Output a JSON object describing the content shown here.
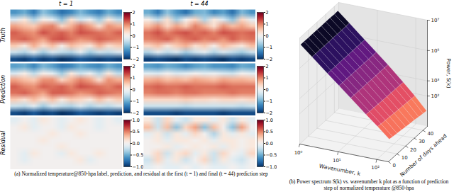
{
  "chart_data": [
    {
      "type": "heatmap_grid",
      "caption": "(a) Normalized temperature@850-hpa label, prediction, and residual at the first (t = 1) and final (t = 44) prediction step",
      "columns": [
        "t = 1",
        "t = 44"
      ],
      "color": "RdBu_r",
      "tick_labels": false,
      "rows": [
        {
          "label": "Truth",
          "colorbar": {
            "range": [
              -2,
              2
            ],
            "ticks": [
              {
                "value": -2,
                "label": "−2"
              },
              {
                "value": -1,
                "label": "−1"
              },
              0,
              1,
              2
            ]
          },
          "cells": [
            [
              [
                -1.2,
                -1.0,
                -1.4,
                -0.8,
                -1.1,
                -1.5,
                -1.3,
                -0.9,
                -1.2,
                -1.4,
                -1.0,
                -1.3
              ],
              [
                -0.3,
                0.2,
                -0.6,
                0.1,
                -0.2,
                -0.8,
                0.3,
                -0.4,
                -0.1,
                -0.7,
                0.2,
                -0.5
              ],
              [
                0.8,
                0.6,
                0.5,
                0.9,
                1.0,
                0.4,
                0.7,
                1.1,
                0.8,
                0.3,
                0.9,
                0.7
              ],
              [
                1.2,
                1.0,
                0.9,
                1.3,
                1.1,
                1.2,
                1.0,
                1.3,
                1.2,
                1.1,
                1.0,
                1.2
              ],
              [
                1.1,
                1.2,
                1.0,
                0.8,
                1.2,
                1.3,
                1.1,
                0.9,
                1.0,
                1.2,
                1.1,
                1.0
              ],
              [
                0.5,
                0.2,
                0.7,
                0.3,
                0.6,
                0.1,
                0.6,
                0.4,
                0.2,
                0.7,
                0.3,
                0.5
              ],
              [
                -0.4,
                -0.6,
                -0.2,
                -0.7,
                -0.3,
                -0.5,
                -0.6,
                -0.2,
                -0.7,
                -0.4,
                -0.5,
                -0.3
              ],
              [
                -1.8,
                -1.9,
                -1.7,
                -1.9,
                -1.8,
                -2.0,
                -1.9,
                -1.7,
                -1.8,
                -1.9,
                -1.8,
                -1.9
              ]
            ],
            [
              [
                -1.0,
                -1.4,
                -0.8,
                -1.2,
                -1.5,
                -1.0,
                -0.9,
                -1.3,
                -1.1,
                -1.5,
                -0.9,
                -1.2
              ],
              [
                0.1,
                -0.5,
                0.3,
                -0.7,
                0.0,
                0.4,
                -0.6,
                0.2,
                -0.3,
                -0.8,
                0.4,
                -0.2
              ],
              [
                0.6,
                0.9,
                0.4,
                0.8,
                0.5,
                1.0,
                0.7,
                0.3,
                0.9,
                0.6,
                0.8,
                0.5
              ],
              [
                1.1,
                1.3,
                1.0,
                1.2,
                1.3,
                1.1,
                1.2,
                1.0,
                1.3,
                1.2,
                1.1,
                1.2
              ],
              [
                1.0,
                1.1,
                1.2,
                0.9,
                1.1,
                1.2,
                1.0,
                1.1,
                0.9,
                1.2,
                1.0,
                1.1
              ],
              [
                0.4,
                0.6,
                0.2,
                0.5,
                0.7,
                0.3,
                0.5,
                0.1,
                0.6,
                0.4,
                0.2,
                0.6
              ],
              [
                -0.6,
                -0.2,
                -0.5,
                -0.3,
                -0.7,
                -0.4,
                -0.2,
                -0.6,
                -0.3,
                -0.5,
                -0.7,
                -0.4
              ],
              [
                -1.9,
                -1.8,
                -1.9,
                -2.0,
                -1.8,
                -1.9,
                -1.8,
                -1.9,
                -2.0,
                -1.8,
                -1.9,
                -1.8
              ]
            ]
          ]
        },
        {
          "label": "Prediction",
          "colorbar": {
            "range": [
              -2,
              2
            ],
            "ticks": [
              {
                "value": -2,
                "label": "−2"
              },
              {
                "value": -1,
                "label": "−1"
              },
              0,
              1,
              2
            ]
          },
          "cells": [
            [
              [
                -1.1,
                -1.0,
                -1.3,
                -0.9,
                -1.1,
                -1.4,
                -1.3,
                -1.0,
                -1.2,
                -1.3,
                -1.0,
                -1.2
              ],
              [
                -0.3,
                0.1,
                -0.5,
                0.1,
                -0.2,
                -0.7,
                0.2,
                -0.4,
                -0.1,
                -0.6,
                0.2,
                -0.5
              ],
              [
                0.8,
                0.6,
                0.5,
                0.9,
                0.9,
                0.4,
                0.7,
                1.0,
                0.8,
                0.3,
                0.9,
                0.7
              ],
              [
                1.2,
                1.0,
                0.9,
                1.2,
                1.1,
                1.2,
                1.0,
                1.3,
                1.2,
                1.1,
                1.0,
                1.2
              ],
              [
                1.1,
                1.2,
                1.0,
                0.8,
                1.2,
                1.2,
                1.1,
                0.9,
                1.0,
                1.2,
                1.1,
                1.0
              ],
              [
                0.5,
                0.3,
                0.6,
                0.3,
                0.6,
                0.2,
                0.5,
                0.4,
                0.2,
                0.6,
                0.3,
                0.5
              ],
              [
                -0.4,
                -0.5,
                -0.2,
                -0.7,
                -0.3,
                -0.5,
                -0.6,
                -0.3,
                -0.6,
                -0.4,
                -0.5,
                -0.3
              ],
              [
                -1.8,
                -1.9,
                -1.7,
                -1.9,
                -1.8,
                -2.0,
                -1.9,
                -1.7,
                -1.8,
                -1.9,
                -1.8,
                -1.9
              ]
            ],
            [
              [
                -1.1,
                -1.2,
                -1.0,
                -1.1,
                -1.3,
                -1.1,
                -1.0,
                -1.2,
                -1.2,
                -1.3,
                -1.0,
                -1.1
              ],
              [
                -0.2,
                -0.3,
                0.0,
                -0.3,
                -0.2,
                0.0,
                -0.2,
                -0.1,
                -0.3,
                -0.4,
                0.0,
                -0.2
              ],
              [
                0.7,
                0.8,
                0.6,
                0.7,
                0.6,
                0.8,
                0.7,
                0.6,
                0.8,
                0.7,
                0.7,
                0.6
              ],
              [
                1.1,
                1.2,
                1.1,
                1.1,
                1.2,
                1.1,
                1.1,
                1.1,
                1.2,
                1.1,
                1.1,
                1.1
              ],
              [
                1.0,
                1.1,
                1.1,
                1.0,
                1.1,
                1.1,
                1.0,
                1.0,
                1.0,
                1.1,
                1.0,
                1.0
              ],
              [
                0.4,
                0.4,
                0.4,
                0.4,
                0.5,
                0.4,
                0.4,
                0.3,
                0.4,
                0.4,
                0.3,
                0.4
              ],
              [
                -0.4,
                -0.4,
                -0.4,
                -0.4,
                -0.5,
                -0.4,
                -0.4,
                -0.4,
                -0.4,
                -0.4,
                -0.5,
                -0.4
              ],
              [
                -1.8,
                -1.8,
                -1.8,
                -1.9,
                -1.8,
                -1.8,
                -1.8,
                -1.8,
                -1.9,
                -1.8,
                -1.8,
                -1.8
              ]
            ]
          ]
        },
        {
          "label": "Residual",
          "colorbar": {
            "range": [
              -1,
              1
            ],
            "ticks": [
              {
                "value": -1,
                "label": "−1.0"
              },
              {
                "value": -0.5,
                "label": "−0.5"
              },
              {
                "value": 0,
                "label": "0.0"
              },
              0.5,
              {
                "value": 1,
                "label": "1.0"
              }
            ]
          },
          "cells": [
            [
              [
                -0.1,
                0.0,
                -0.1,
                0.1,
                0.0,
                -0.1,
                0.0,
                0.1,
                0.0,
                -0.1,
                0.0,
                -0.1
              ],
              [
                0.0,
                0.1,
                -0.1,
                0.0,
                0.0,
                -0.1,
                0.1,
                0.0,
                0.0,
                -0.1,
                0.0,
                0.0
              ],
              [
                0.0,
                0.0,
                0.0,
                0.0,
                0.1,
                0.0,
                0.0,
                0.1,
                0.0,
                0.0,
                0.0,
                0.0
              ],
              [
                0.0,
                0.0,
                0.0,
                0.1,
                0.0,
                0.0,
                0.0,
                0.0,
                0.0,
                0.0,
                0.0,
                0.0
              ],
              [
                0.0,
                0.0,
                0.0,
                0.0,
                0.0,
                0.1,
                0.0,
                0.0,
                0.0,
                0.0,
                0.0,
                0.0
              ],
              [
                0.0,
                -0.1,
                0.1,
                0.0,
                0.0,
                -0.1,
                0.1,
                0.0,
                0.0,
                0.1,
                0.0,
                0.0
              ],
              [
                0.0,
                -0.1,
                0.0,
                0.0,
                0.0,
                0.0,
                0.0,
                0.1,
                -0.1,
                0.0,
                0.0,
                0.0
              ],
              [
                0.0,
                0.0,
                0.0,
                0.0,
                0.0,
                0.0,
                0.0,
                0.0,
                0.0,
                0.0,
                0.0,
                0.0
              ]
            ],
            [
              [
                0.1,
                -0.2,
                0.2,
                -0.1,
                -0.2,
                0.1,
                0.1,
                -0.1,
                0.1,
                -0.2,
                0.1,
                -0.1
              ],
              [
                0.3,
                -0.2,
                0.3,
                -0.4,
                0.2,
                0.4,
                -0.4,
                0.3,
                0.0,
                -0.4,
                0.4,
                0.0
              ],
              [
                -0.1,
                0.1,
                -0.2,
                0.1,
                -0.1,
                0.2,
                0.0,
                -0.3,
                0.1,
                -0.1,
                0.1,
                -0.1
              ],
              [
                0.0,
                0.1,
                -0.1,
                0.1,
                0.1,
                0.0,
                0.1,
                -0.1,
                0.1,
                0.1,
                0.0,
                0.1
              ],
              [
                0.0,
                0.0,
                0.1,
                -0.1,
                0.0,
                0.1,
                0.0,
                0.1,
                -0.1,
                0.1,
                0.0,
                0.1
              ],
              [
                0.0,
                0.2,
                -0.2,
                0.1,
                0.2,
                -0.1,
                0.1,
                -0.2,
                0.2,
                0.0,
                -0.1,
                0.2
              ],
              [
                -0.2,
                0.2,
                -0.1,
                0.1,
                -0.2,
                0.0,
                0.2,
                -0.2,
                0.1,
                -0.1,
                -0.2,
                0.0
              ],
              [
                -0.1,
                0.0,
                -0.1,
                -0.1,
                0.0,
                -0.1,
                0.0,
                -0.1,
                -0.1,
                0.0,
                -0.1,
                0.0
              ]
            ]
          ]
        }
      ]
    },
    {
      "type": "surface",
      "caption": "(b) Power spectrum S(k) vs. wavenumber k plot as a function of prediction step of normalized temperature @850-hpa",
      "log": true,
      "color": "magma_r",
      "xlabel": "Wavenumber, k",
      "ylabel": "Number of days ahead",
      "zlabel": "Power, S(k)",
      "xlim": [
        1,
        200
      ],
      "xticks": [
        {
          "value": 1,
          "label": "10⁰"
        },
        {
          "value": 10,
          "label": "10¹"
        },
        {
          "value": 100,
          "label": "10²"
        }
      ],
      "ylim": [
        0,
        45
      ],
      "yticks": [
        0,
        10,
        20,
        30,
        40
      ],
      "zlim": [
        1,
        10000000
      ],
      "zticks": [
        {
          "value": 100,
          "label": "10²"
        },
        {
          "value": 1000,
          "label": "10³"
        },
        {
          "value": 100000,
          "label": "10⁵"
        },
        {
          "value": 10000000,
          "label": "10⁷"
        }
      ],
      "x": [
        1,
        2,
        5,
        10,
        20,
        50,
        100,
        200
      ],
      "y": [
        1,
        5,
        10,
        15,
        20,
        25,
        30,
        35,
        40,
        44
      ],
      "values": [
        [
          3200000,
          700000,
          90000,
          20000,
          4400,
          580,
          130,
          28
        ],
        [
          3200000,
          700000,
          90000,
          20000,
          4300,
          560,
          120,
          25
        ],
        [
          3100000,
          700000,
          89000,
          20000,
          4300,
          540,
          115,
          23
        ],
        [
          3200000,
          690000,
          89000,
          19800,
          4200,
          520,
          108,
          21
        ],
        [
          3200000,
          690000,
          89000,
          19600,
          4200,
          500,
          102,
          19
        ],
        [
          3100000,
          700000,
          88000,
          19500,
          4100,
          490,
          97,
          17
        ],
        [
          3200000,
          690000,
          88000,
          19400,
          4100,
          480,
          92,
          16
        ],
        [
          3200000,
          690000,
          88000,
          19300,
          4100,
          470,
          88,
          14
        ],
        [
          3100000,
          690000,
          88000,
          19100,
          4000,
          460,
          84,
          13
        ],
        [
          3200000,
          690000,
          88000,
          19000,
          4000,
          450,
          80,
          12
        ]
      ]
    }
  ]
}
